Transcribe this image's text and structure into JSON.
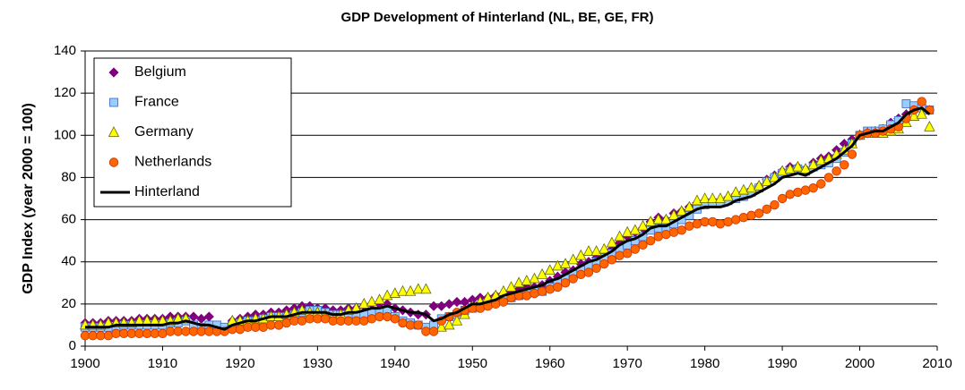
{
  "chart_data": {
    "type": "line",
    "title": "GDP Development of Hinterland (NL, BE, GE, FR)",
    "y_label": "GDP Index (year 2000 = 100)",
    "xlim": [
      1900,
      2010
    ],
    "xticks": [
      1900,
      1910,
      1920,
      1930,
      1940,
      1950,
      1960,
      1970,
      1980,
      1990,
      2000,
      2010
    ],
    "ylim": [
      0,
      140
    ],
    "yticks": [
      0,
      20,
      40,
      60,
      80,
      100,
      120,
      140
    ],
    "grid": true,
    "legend": "top-left",
    "x": [
      1900,
      1901,
      1902,
      1903,
      1904,
      1905,
      1906,
      1907,
      1908,
      1909,
      1910,
      1911,
      1912,
      1913,
      1914,
      1915,
      1916,
      1917,
      1918,
      1919,
      1920,
      1921,
      1922,
      1923,
      1924,
      1925,
      1926,
      1927,
      1928,
      1929,
      1930,
      1931,
      1932,
      1933,
      1934,
      1935,
      1936,
      1937,
      1938,
      1939,
      1940,
      1941,
      1942,
      1943,
      1944,
      1945,
      1946,
      1947,
      1948,
      1949,
      1950,
      1951,
      1952,
      1953,
      1954,
      1955,
      1956,
      1957,
      1958,
      1959,
      1960,
      1961,
      1962,
      1963,
      1964,
      1965,
      1966,
      1967,
      1968,
      1969,
      1970,
      1971,
      1972,
      1973,
      1974,
      1975,
      1976,
      1977,
      1978,
      1979,
      1980,
      1981,
      1982,
      1983,
      1984,
      1985,
      1986,
      1987,
      1988,
      1989,
      1990,
      1991,
      1992,
      1993,
      1994,
      1995,
      1996,
      1997,
      1998,
      1999,
      2000,
      2001,
      2002,
      2003,
      2004,
      2005,
      2006,
      2007,
      2008,
      2009
    ],
    "series": [
      {
        "name": "Belgium",
        "color": "#800080",
        "marker": "diamond",
        "values": [
          11,
          11,
          11,
          12,
          12,
          12,
          12,
          13,
          13,
          13,
          13,
          14,
          14,
          14,
          14,
          13,
          14,
          null,
          null,
          12,
          13,
          14,
          15,
          15,
          16,
          16,
          17,
          18,
          19,
          19,
          18,
          18,
          17,
          17,
          18,
          18,
          19,
          20,
          20,
          20,
          18,
          17,
          16,
          15,
          15,
          19,
          19,
          20,
          21,
          21,
          22,
          23,
          23,
          24,
          25,
          26,
          27,
          28,
          28,
          29,
          31,
          33,
          35,
          36,
          39,
          40,
          42,
          44,
          46,
          49,
          52,
          54,
          56,
          59,
          61,
          60,
          63,
          64,
          66,
          68,
          69,
          68,
          69,
          70,
          72,
          73,
          74,
          76,
          79,
          81,
          83,
          85,
          85,
          84,
          87,
          89,
          90,
          93,
          96,
          98,
          100,
          101,
          102,
          103,
          106,
          108,
          110,
          113,
          114,
          112
        ]
      },
      {
        "name": "France",
        "color": "#99ccff",
        "marker": "square",
        "values": [
          9,
          9,
          9,
          9,
          9,
          10,
          10,
          10,
          10,
          10,
          10,
          11,
          11,
          12,
          10,
          9,
          10,
          10,
          9,
          10,
          11,
          12,
          12,
          13,
          14,
          14,
          14,
          15,
          16,
          17,
          17,
          16,
          15,
          15,
          15,
          15,
          15,
          16,
          16,
          17,
          14,
          12,
          11,
          10,
          9,
          10,
          13,
          14,
          15,
          17,
          18,
          19,
          20,
          21,
          22,
          23,
          24,
          25,
          26,
          26,
          28,
          30,
          32,
          34,
          36,
          38,
          40,
          42,
          44,
          46,
          48,
          50,
          52,
          55,
          56,
          56,
          58,
          60,
          62,
          65,
          67,
          68,
          68,
          69,
          70,
          71,
          73,
          75,
          78,
          80,
          82,
          83,
          84,
          83,
          85,
          86,
          87,
          89,
          92,
          96,
          100,
          102,
          102,
          103,
          105,
          107,
          115,
          114,
          113,
          112
        ]
      },
      {
        "name": "Germany",
        "color": "#ffff00",
        "marker": "triangle",
        "values": [
          10,
          10,
          10,
          11,
          11,
          11,
          11,
          12,
          12,
          12,
          12,
          12,
          13,
          13,
          null,
          null,
          null,
          null,
          null,
          12,
          12,
          12,
          13,
          13,
          14,
          14,
          15,
          16,
          17,
          16,
          16,
          15,
          14,
          15,
          17,
          18,
          20,
          21,
          22,
          24,
          25,
          26,
          26,
          27,
          27,
          null,
          9,
          10,
          12,
          15,
          19,
          21,
          23,
          24,
          26,
          28,
          30,
          31,
          32,
          34,
          36,
          38,
          39,
          41,
          43,
          45,
          45,
          46,
          49,
          52,
          54,
          55,
          57,
          59,
          60,
          60,
          62,
          64,
          66,
          69,
          70,
          70,
          70,
          71,
          73,
          74,
          75,
          76,
          78,
          80,
          83,
          84,
          85,
          84,
          86,
          88,
          89,
          91,
          93,
          96,
          100,
          101,
          101,
          101,
          102,
          103,
          106,
          109,
          110,
          104
        ]
      },
      {
        "name": "Netherlands",
        "color": "#ff6600",
        "marker": "circle",
        "values": [
          5,
          5,
          5,
          5,
          6,
          6,
          6,
          6,
          6,
          6,
          6,
          7,
          7,
          7,
          7,
          7,
          7,
          7,
          7,
          8,
          8,
          9,
          9,
          9,
          10,
          10,
          11,
          12,
          12,
          13,
          13,
          13,
          12,
          12,
          12,
          12,
          12,
          13,
          14,
          14,
          13,
          11,
          10,
          10,
          7,
          7,
          12,
          14,
          16,
          17,
          18,
          18,
          19,
          20,
          21,
          23,
          24,
          24,
          25,
          26,
          27,
          28,
          30,
          32,
          34,
          35,
          37,
          39,
          41,
          43,
          44,
          46,
          48,
          50,
          52,
          53,
          54,
          55,
          57,
          58,
          59,
          59,
          58,
          59,
          60,
          61,
          62,
          63,
          65,
          67,
          70,
          72,
          73,
          74,
          75,
          77,
          80,
          83,
          86,
          91,
          100,
          101,
          101,
          102,
          103,
          104,
          108,
          112,
          116,
          112
        ]
      },
      {
        "name": "Hinterland",
        "color": "#000000",
        "marker": "line",
        "values": [
          9,
          9,
          9,
          9,
          10,
          10,
          10,
          10,
          10,
          10,
          10,
          11,
          11,
          12,
          11,
          10,
          10,
          9,
          8,
          10,
          11,
          12,
          12,
          13,
          14,
          14,
          14,
          15,
          16,
          16,
          16,
          16,
          15,
          15,
          16,
          16,
          17,
          18,
          18,
          19,
          18,
          17,
          16,
          16,
          15,
          12,
          13,
          15,
          16,
          18,
          20,
          20,
          21,
          22,
          24,
          25,
          26,
          27,
          28,
          29,
          31,
          32,
          34,
          36,
          38,
          40,
          41,
          43,
          45,
          48,
          50,
          51,
          53,
          56,
          57,
          57,
          59,
          61,
          63,
          65,
          66,
          66,
          66,
          67,
          69,
          70,
          71,
          73,
          75,
          77,
          80,
          81,
          82,
          81,
          83,
          85,
          87,
          89,
          92,
          95,
          100,
          101,
          102,
          102,
          104,
          106,
          110,
          112,
          113,
          110
        ]
      }
    ]
  }
}
